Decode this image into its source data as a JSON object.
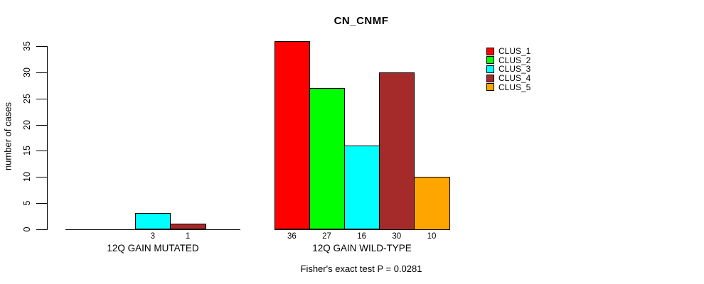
{
  "chart_data": {
    "type": "bar",
    "title": "CN_CNMF",
    "ylabel": "number of cases",
    "ylim": [
      0,
      36
    ],
    "yticks": [
      0,
      5,
      10,
      15,
      20,
      25,
      30,
      35
    ],
    "grid": false,
    "legend_position": "right",
    "series": [
      {
        "name": "CLUS_1",
        "color": "#ff0000"
      },
      {
        "name": "CLUS_2",
        "color": "#00ff00"
      },
      {
        "name": "CLUS_3",
        "color": "#00ffff"
      },
      {
        "name": "CLUS_4",
        "color": "#a52a2a"
      },
      {
        "name": "CLUS_5",
        "color": "#ffa500"
      }
    ],
    "groups": [
      {
        "label": "12Q GAIN MUTATED",
        "values": [
          0,
          0,
          3,
          1,
          0
        ]
      },
      {
        "label": "12Q GAIN WILD-TYPE",
        "values": [
          36,
          27,
          16,
          30,
          10
        ]
      }
    ],
    "annotation": "Fisher's exact test P = 0.0281"
  }
}
